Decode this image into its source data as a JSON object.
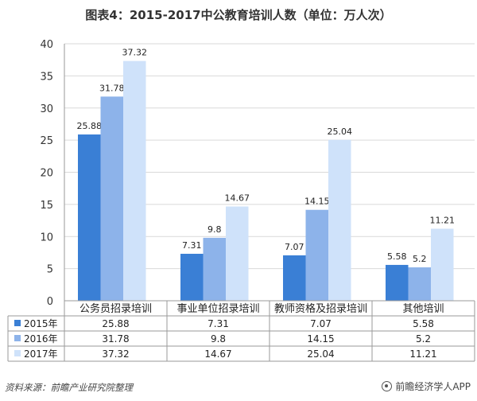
{
  "title": "图表4：2015-2017中公教育培训人数（单位：万人次）",
  "colors": {
    "s2015": "#3a7fd5",
    "s2016": "#8db3ea",
    "s2017": "#cfe2fa",
    "grid": "#d9d9d9",
    "axis": "#9a9a9a"
  },
  "footer": {
    "source": "资料来源：前瞻产业研究院整理",
    "brand": "前瞻经济学人APP"
  },
  "chart_data": {
    "type": "bar",
    "title": "图表4：2015-2017中公教育培训人数（单位：万人次）",
    "categories": [
      "公务员招录培训",
      "事业单位招录培训",
      "教师资格及招录培训",
      "其他培训"
    ],
    "series": [
      {
        "name": "2015年",
        "values": [
          25.88,
          7.31,
          7.07,
          5.58
        ]
      },
      {
        "name": "2016年",
        "values": [
          31.78,
          9.8,
          14.15,
          5.2
        ]
      },
      {
        "name": "2017年",
        "values": [
          37.32,
          14.67,
          25.04,
          11.21
        ]
      }
    ],
    "value_labels": [
      [
        "25.88",
        "7.31",
        "7.07",
        "5.58"
      ],
      [
        "31.78",
        "9.8",
        "14.15",
        "5.2"
      ],
      [
        "37.32",
        "14.67",
        "25.04",
        "11.21"
      ]
    ],
    "ylim": [
      0,
      40
    ],
    "yticks": [
      "0",
      "5",
      "10",
      "15",
      "20",
      "25",
      "30",
      "35",
      "40"
    ],
    "grid": true,
    "legend": "data-table"
  }
}
